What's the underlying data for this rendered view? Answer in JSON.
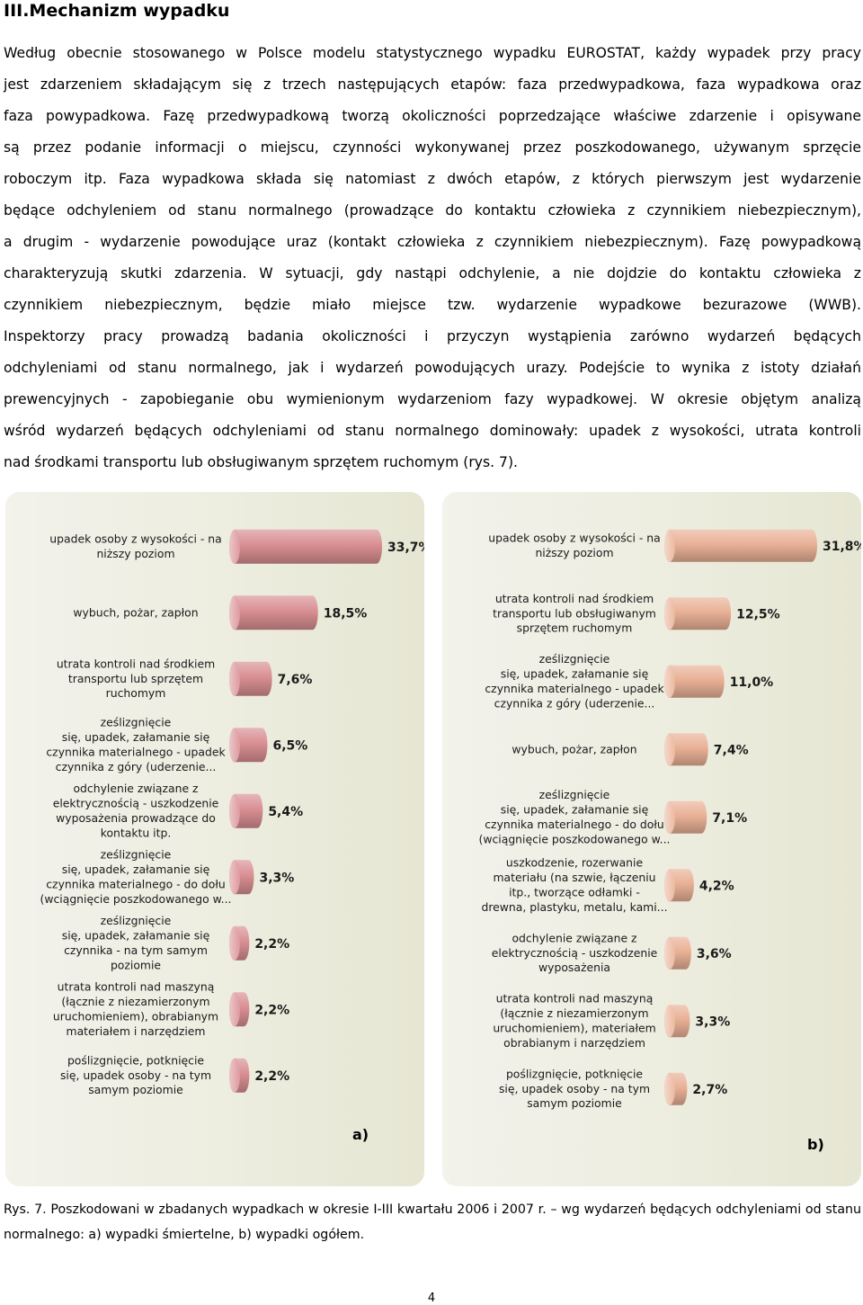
{
  "heading": "III.Mechanizm wypadku",
  "paragraph_lines": [
    "Według obecnie stosowanego w Polsce modelu statystycznego wypadku EUROSTAT, każdy wypadek przy pracy",
    "jest zdarzeniem składającym się z trzech następujących etapów: faza przedwypadkowa, faza wypadkowa oraz",
    "faza powypadkowa. Fazę przedwypadkową tworzą okoliczności poprzedzające właściwe zdarzenie i opisywane",
    "są przez podanie informacji o miejscu, czynności wykonywanej przez poszkodowanego, używanym sprzęcie",
    "roboczym itp. Faza wypadkowa składa się natomiast z dwóch etapów, z których pierwszym jest wydarzenie",
    "będące odchyleniem od stanu normalnego (prowadzące do kontaktu człowieka z czynnikiem niebezpiecznym),",
    "a drugim - wydarzenie powodujące uraz (kontakt człowieka z czynnikiem niebezpiecznym). Fazę powypadkową",
    "charakteryzują skutki zdarzenia. W sytuacji, gdy nastąpi odchylenie, a nie dojdzie do kontaktu człowieka z",
    "czynnikiem niebezpiecznym, będzie miało miejsce tzw. wydarzenie wypadkowe bezurazowe (WWB).",
    "Inspektorzy pracy prowadzą badania okoliczności i przyczyn wystąpienia zarówno wydarzeń będących",
    "odchyleniami od stanu normalnego, jak i wydarzeń powodujących urazy. Podejście to wynika z istoty działań",
    "prewencyjnych - zapobieganie obu wymienionym wydarzeniom fazy wypadkowej. W okresie objętym analizą",
    "wśród wydarzeń będących odchyleniami od stanu normalnego dominowały: upadek z wysokości, utrata kontroli",
    "nad środkami transportu lub obsługiwanym sprzętem ruchomym (rys. 7)."
  ],
  "chart_data": [
    {
      "type": "bar",
      "orientation": "horizontal",
      "panel_label": "a)",
      "unit": "%",
      "categories": [
        [
          "upadek osoby z wysokości - na",
          "niższy poziom"
        ],
        [
          "wybuch, pożar, zapłon"
        ],
        [
          "utrata kontroli nad środkiem",
          "transportu lub sprzętem",
          "ruchomym"
        ],
        [
          "ześlizgnięcie",
          "się, upadek, załamanie się",
          "czynnika materialnego - upadek",
          "czynnika z góry (uderzenie..."
        ],
        [
          "odchylenie związane z",
          "elektrycznością - uszkodzenie",
          "wyposażenia prowadzące do",
          "kontaktu itp."
        ],
        [
          "ześlizgnięcie",
          "się, upadek, załamanie się",
          "czynnika materialnego - do dołu",
          "(wciągnięcie poszkodowanego w..."
        ],
        [
          "ześlizgnięcie",
          "się, upadek, załamanie się",
          "czynnika - na tym samym",
          "poziomie"
        ],
        [
          "utrata kontroli nad maszyną",
          "(łącznie z niezamierzonym",
          "uruchomieniem), obrabianym",
          "materiałem i narzędziem"
        ],
        [
          "poślizgnięcie, potknięcie",
          "się, upadek osoby - na tym",
          "samym poziomie"
        ]
      ],
      "values": [
        33.7,
        18.5,
        7.6,
        6.5,
        5.4,
        3.3,
        2.2,
        2.2,
        2.2
      ],
      "value_labels": [
        "33,7%",
        "18,5%",
        "7,6%",
        "6,5%",
        "5,4%",
        "3,3%",
        "2,2%",
        "2,2%",
        "2,2%"
      ],
      "bar_color": "#d98f93",
      "xlim": [
        0,
        33.7
      ]
    },
    {
      "type": "bar",
      "orientation": "horizontal",
      "panel_label": "b)",
      "unit": "%",
      "categories": [
        [
          "upadek osoby z wysokości - na",
          "niższy poziom"
        ],
        [
          "utrata kontroli nad środkiem",
          "transportu lub obsługiwanym",
          "sprzętem ruchomym"
        ],
        [
          "ześlizgnięcie",
          "się, upadek, załamanie się",
          "czynnika materialnego - upadek",
          "czynnika z góry (uderzenie..."
        ],
        [
          "wybuch, pożar, zapłon"
        ],
        [
          "ześlizgnięcie",
          "się, upadek, załamanie się",
          "czynnika materialnego - do dołu",
          "(wciągnięcie poszkodowanego w..."
        ],
        [
          "uszkodzenie, rozerwanie",
          "materiału (na szwie, łączeniu",
          "itp., tworzące odłamki -",
          "drewna, plastyku, metalu, kami..."
        ],
        [
          "odchylenie związane z",
          "elektrycznością - uszkodzenie",
          "wyposażenia"
        ],
        [
          "utrata kontroli nad maszyną",
          "(łącznie z niezamierzonym",
          "uruchomieniem), materiałem",
          "obrabianym i narzędziem"
        ],
        [
          "poślizgnięcie, potknięcie",
          "się, upadek osoby - na tym",
          "samym poziomie"
        ]
      ],
      "values": [
        31.8,
        12.5,
        11.0,
        7.4,
        7.1,
        4.2,
        3.6,
        3.3,
        2.7
      ],
      "value_labels": [
        "31,8%",
        "12,5%",
        "11,0%",
        "7,4%",
        "7,1%",
        "4,2%",
        "3,6%",
        "3,3%",
        "2,7%"
      ],
      "bar_color": "#e9b196",
      "xlim": [
        0,
        31.8
      ]
    }
  ],
  "caption_lines": [
    "Rys. 7. Poszkodowani w zbadanych wypadkach w okresie I-III kwartału 2006 i 2007 r. – wg wydarzeń będących odchyleniami od stanu",
    "normalnego: a) wypadki śmiertelne, b) wypadki ogółem."
  ],
  "page_number": "4"
}
